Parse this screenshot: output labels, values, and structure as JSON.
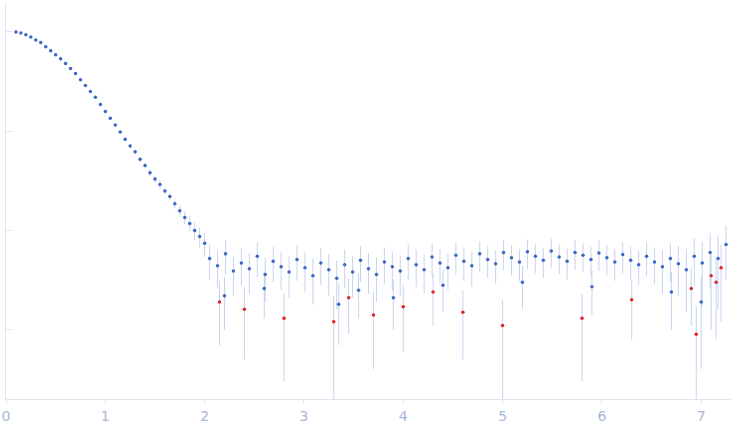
{
  "chart_data": {
    "type": "scatter",
    "log": "y",
    "grid": false,
    "tick_labels": "x",
    "xlim": [
      0,
      7.3
    ],
    "xticks": [
      0,
      1,
      2,
      3,
      4,
      5,
      6,
      7
    ],
    "ylim": [
      0.0002,
      2
    ],
    "yticks": [
      0.001,
      0.01,
      0.1,
      1
    ],
    "series": [
      {
        "color": "#3a68c4",
        "marker": "circle",
        "x": [
          0.1,
          0.15,
          0.2,
          0.25,
          0.3,
          0.35,
          0.4,
          0.45,
          0.5,
          0.55,
          0.6,
          0.65,
          0.7,
          0.75,
          0.8,
          0.85,
          0.9,
          0.95,
          1.0,
          1.05,
          1.1,
          1.15,
          1.2,
          1.25,
          1.3,
          1.35,
          1.4,
          1.45,
          1.5,
          1.55,
          1.6,
          1.65,
          1.7,
          1.75,
          1.8,
          1.85,
          1.9,
          1.95,
          2.0,
          2.05,
          2.13,
          2.21,
          2.29,
          2.37,
          2.45,
          2.53,
          2.61,
          2.69,
          2.77,
          2.85,
          2.93,
          3.01,
          3.09,
          3.17,
          3.25,
          3.33,
          3.41,
          3.49,
          3.57,
          3.65,
          3.73,
          3.81,
          3.89,
          3.97,
          4.05,
          4.13,
          4.21,
          4.29,
          4.37,
          4.45,
          4.53,
          4.61,
          4.69,
          4.77,
          4.85,
          4.93,
          5.01,
          5.09,
          5.17,
          5.25,
          5.33,
          5.41,
          5.49,
          5.57,
          5.65,
          5.73,
          5.81,
          5.89,
          5.97,
          6.05,
          6.13,
          6.21,
          6.29,
          6.37,
          6.45,
          6.53,
          6.61,
          6.69,
          6.77,
          6.85,
          6.93,
          7.01,
          7.09,
          7.17,
          7.25,
          2.2,
          2.6,
          3.35,
          3.55,
          3.9,
          4.4,
          5.2,
          5.9,
          6.7,
          7.0
        ],
        "values": [
          1.0,
          0.977,
          0.933,
          0.89,
          0.83,
          0.78,
          0.71,
          0.646,
          0.589,
          0.537,
          0.479,
          0.427,
          0.38,
          0.33,
          0.288,
          0.251,
          0.219,
          0.186,
          0.158,
          0.135,
          0.115,
          0.098,
          0.083,
          0.071,
          0.062,
          0.052,
          0.045,
          0.038,
          0.033,
          0.029,
          0.025,
          0.022,
          0.0186,
          0.0158,
          0.0135,
          0.0117,
          0.01,
          0.0087,
          0.0074,
          0.0052,
          0.0044,
          0.0058,
          0.0039,
          0.0047,
          0.0041,
          0.0055,
          0.0036,
          0.0049,
          0.0043,
          0.0038,
          0.0051,
          0.0042,
          0.0035,
          0.0047,
          0.004,
          0.0033,
          0.0045,
          0.0038,
          0.005,
          0.0041,
          0.0036,
          0.0048,
          0.0043,
          0.0039,
          0.0052,
          0.0045,
          0.004,
          0.0054,
          0.0047,
          0.0042,
          0.0056,
          0.0049,
          0.0044,
          0.0058,
          0.0051,
          0.0046,
          0.006,
          0.0053,
          0.0048,
          0.0061,
          0.0055,
          0.005,
          0.0062,
          0.0054,
          0.0049,
          0.006,
          0.0056,
          0.0051,
          0.0059,
          0.0053,
          0.0048,
          0.0057,
          0.005,
          0.0045,
          0.0055,
          0.0048,
          0.0043,
          0.0052,
          0.0046,
          0.004,
          0.0055,
          0.0047,
          0.006,
          0.0052,
          0.0072,
          0.0022,
          0.0026,
          0.0018,
          0.0025,
          0.0021,
          0.0028,
          0.003,
          0.0027,
          0.0024,
          0.0019
        ],
        "errors": [
          0.01,
          0.01,
          0.009,
          0.009,
          0.008,
          0.008,
          0.007,
          0.007,
          0.006,
          0.006,
          0.005,
          0.005,
          0.005,
          0.004,
          0.004,
          0.004,
          0.004,
          0.003,
          0.003,
          0.003,
          0.003,
          0.003,
          0.003,
          0.003,
          0.003,
          0.003,
          0.003,
          0.003,
          0.003,
          0.003,
          0.002,
          0.002,
          0.002,
          0.002,
          0.002,
          0.002,
          0.002,
          0.002,
          0.002,
          0.002,
          0.0018,
          0.0022,
          0.0017,
          0.0019,
          0.0018,
          0.0021,
          0.0017,
          0.0019,
          0.0018,
          0.0017,
          0.002,
          0.0018,
          0.0017,
          0.0019,
          0.0018,
          0.0017,
          0.0019,
          0.0017,
          0.002,
          0.0018,
          0.0017,
          0.0019,
          0.0018,
          0.0017,
          0.002,
          0.0018,
          0.0017,
          0.002,
          0.0018,
          0.0017,
          0.002,
          0.0018,
          0.0017,
          0.002,
          0.0018,
          0.0017,
          0.002,
          0.0018,
          0.0017,
          0.002,
          0.0018,
          0.0017,
          0.002,
          0.0018,
          0.0017,
          0.002,
          0.0018,
          0.0017,
          0.002,
          0.0018,
          0.0017,
          0.002,
          0.0018,
          0.0017,
          0.002,
          0.0019,
          0.002,
          0.0022,
          0.0024,
          0.0025,
          0.0028,
          0.003,
          0.0034,
          0.0036,
          0.004,
          0.0012,
          0.0013,
          0.0011,
          0.0012,
          0.0011,
          0.0013,
          0.0014,
          0.0013,
          0.0014,
          0.0015
        ]
      },
      {
        "color": "#e8202a",
        "marker": "circle",
        "x": [
          2.15,
          2.4,
          2.8,
          3.3,
          3.45,
          3.7,
          4.0,
          4.3,
          4.6,
          5.0,
          5.8,
          6.3,
          6.9,
          7.1,
          7.2,
          7.15,
          6.95
        ],
        "values": [
          0.0019,
          0.0016,
          0.0013,
          0.0012,
          0.0021,
          0.0014,
          0.0017,
          0.0024,
          0.0015,
          0.0011,
          0.0013,
          0.002,
          0.0026,
          0.0035,
          0.0042,
          0.003,
          0.0009
        ],
        "errors": [
          0.0012,
          0.0011,
          0.001,
          0.001,
          0.0012,
          0.001,
          0.0011,
          0.0013,
          0.001,
          0.0009,
          0.001,
          0.0012,
          0.0015,
          0.0025,
          0.003,
          0.0022,
          0.0008
        ]
      }
    ]
  }
}
